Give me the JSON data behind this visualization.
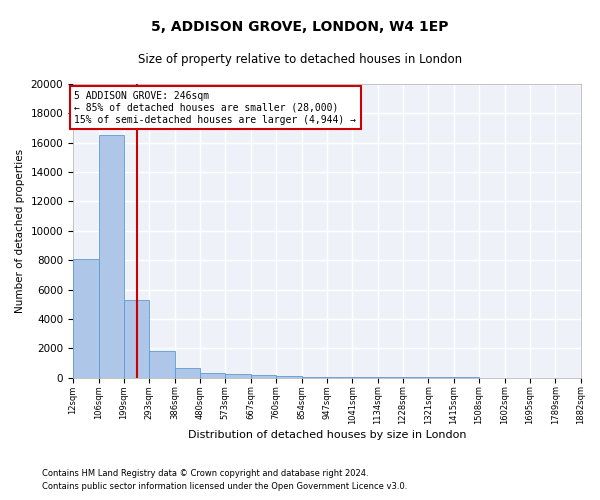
{
  "title1": "5, ADDISON GROVE, LONDON, W4 1EP",
  "title2": "Size of property relative to detached houses in London",
  "xlabel": "Distribution of detached houses by size in London",
  "ylabel": "Number of detached properties",
  "bar_values": [
    8100,
    16500,
    5300,
    1800,
    650,
    350,
    250,
    150,
    100,
    80,
    60,
    50,
    40,
    30,
    20,
    15,
    10,
    5,
    3,
    2
  ],
  "bin_edges": [
    12,
    106,
    199,
    293,
    386,
    480,
    573,
    667,
    760,
    854,
    947,
    1041,
    1134,
    1228,
    1321,
    1415,
    1508,
    1602,
    1695,
    1789,
    1882
  ],
  "tick_labels": [
    "12sqm",
    "106sqm",
    "199sqm",
    "293sqm",
    "386sqm",
    "480sqm",
    "573sqm",
    "667sqm",
    "760sqm",
    "854sqm",
    "947sqm",
    "1041sqm",
    "1134sqm",
    "1228sqm",
    "1321sqm",
    "1415sqm",
    "1508sqm",
    "1602sqm",
    "1695sqm",
    "1789sqm",
    "1882sqm"
  ],
  "bar_color": "#aec6e8",
  "bar_edge_color": "#5b9bd5",
  "vline_x": 246,
  "vline_color": "#cc0000",
  "annotation_line1": "5 ADDISON GROVE: 246sqm",
  "annotation_line2": "← 85% of detached houses are smaller (28,000)",
  "annotation_line3": "15% of semi-detached houses are larger (4,944) →",
  "annotation_box_color": "#cc0000",
  "ylim": [
    0,
    20000
  ],
  "yticks": [
    0,
    2000,
    4000,
    6000,
    8000,
    10000,
    12000,
    14000,
    16000,
    18000,
    20000
  ],
  "footnote1": "Contains HM Land Registry data © Crown copyright and database right 2024.",
  "footnote2": "Contains public sector information licensed under the Open Government Licence v3.0.",
  "bg_color": "#eef2f8"
}
